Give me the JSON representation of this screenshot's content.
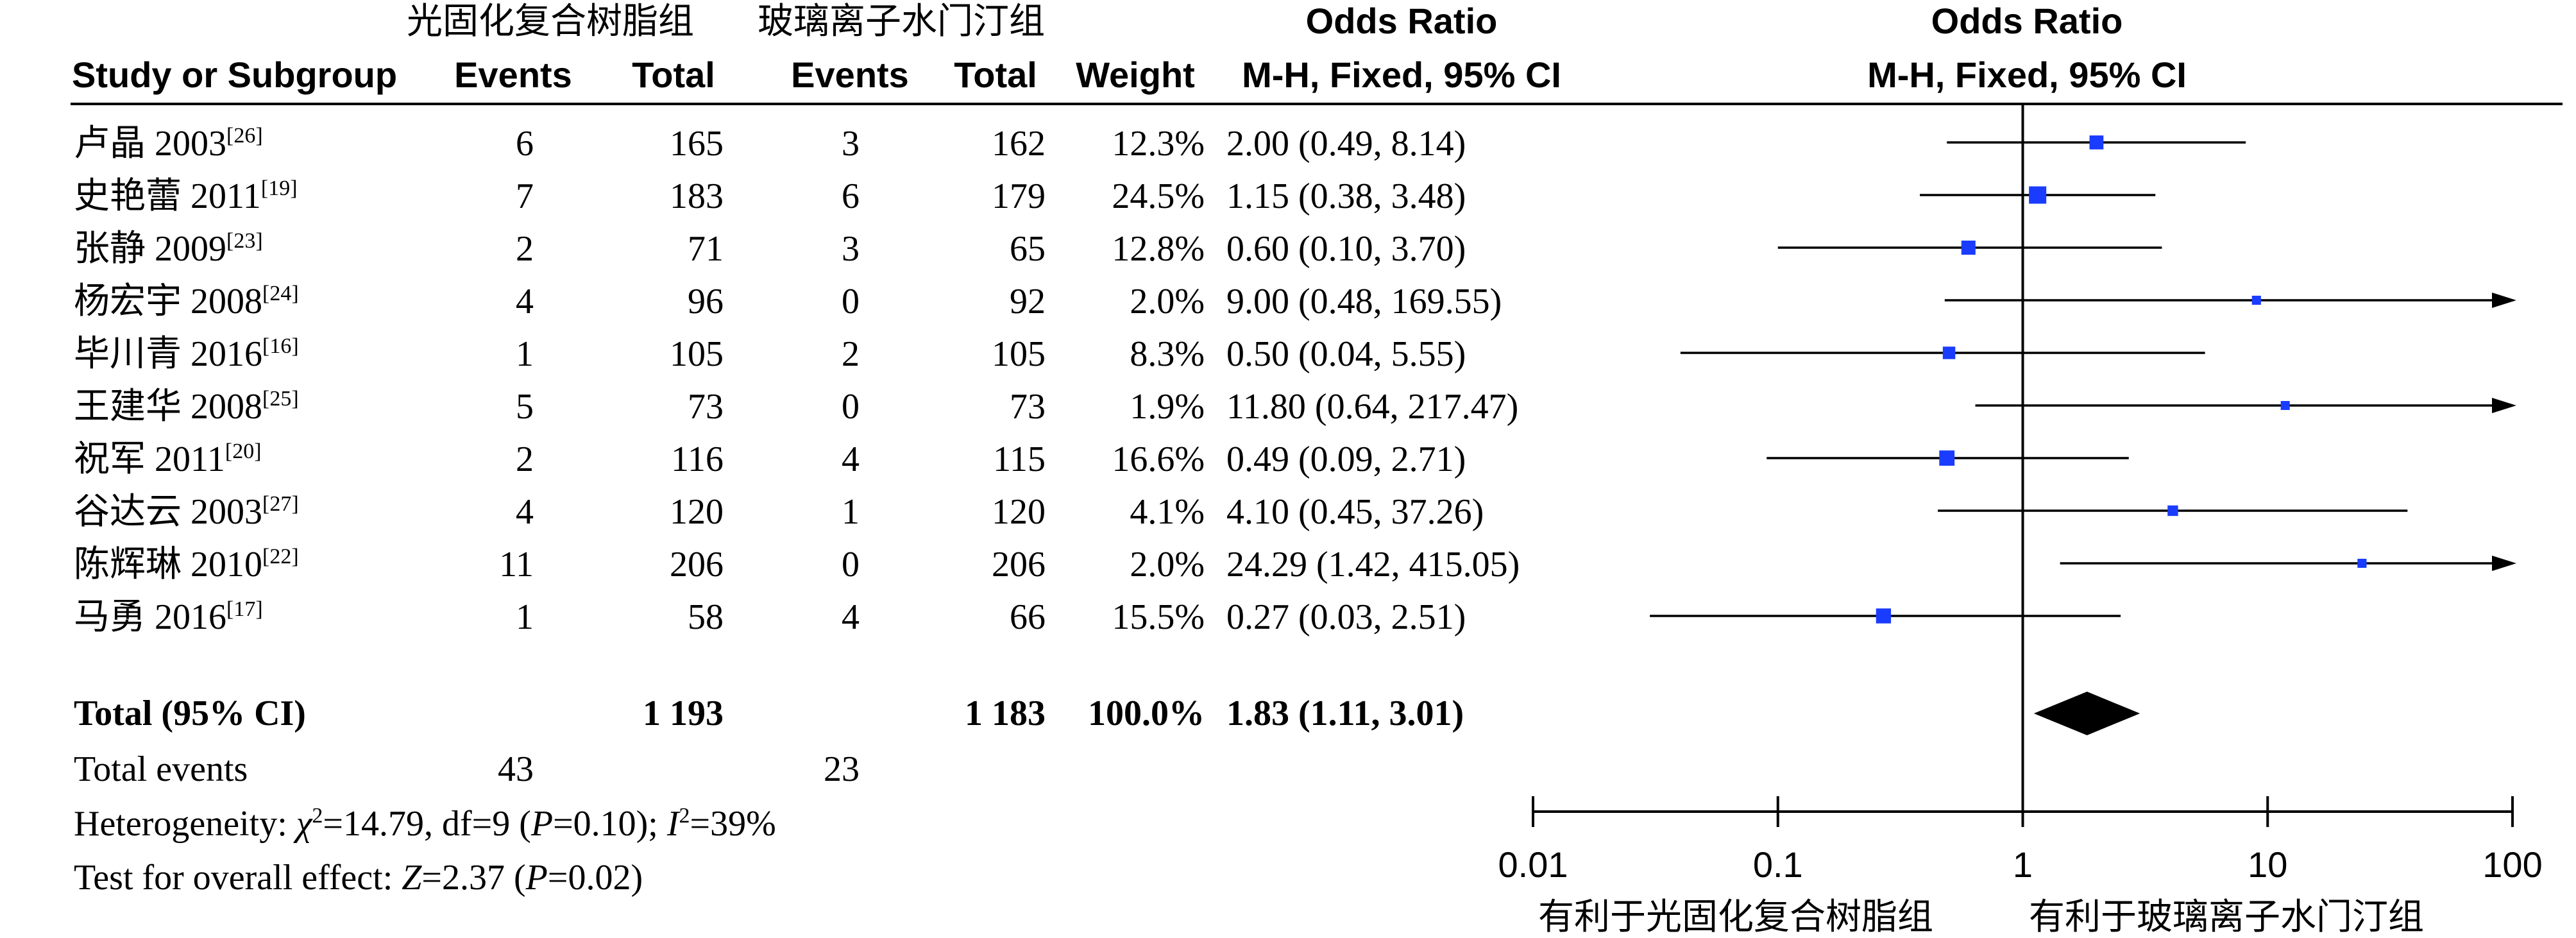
{
  "header": {
    "group1": "光固化复合树脂组",
    "group2": "玻璃离子水门汀组",
    "or_title": "Odds Ratio",
    "or_method": "M-H, Fixed, 95% CI",
    "plot_title": "Odds Ratio",
    "plot_method": "M-H, Fixed, 95% CI",
    "col_study": "Study or Subgroup",
    "col_events1": "Events",
    "col_total1": "Total",
    "col_events2": "Events",
    "col_total2": "Total",
    "col_weight": "Weight"
  },
  "total_row": {
    "label": "Total (95% CI)",
    "total1": "1 193",
    "total2": "1 183",
    "weight": "100.0%",
    "ci_text": "1.83 (1.11, 3.01)"
  },
  "total_events": {
    "label": "Total events",
    "events1": "43",
    "events2": "23"
  },
  "heterogeneity": {
    "prefix": "Heterogeneity: ",
    "chi": "χ",
    "chi_sup": "2",
    "chi_rest": "=14.79, df=9 (",
    "p": "P",
    "p_rest": "=0.10); ",
    "i": "I",
    "i_sup": "2",
    "i_rest": "=39%"
  },
  "overall_effect": {
    "prefix": "Test for overall effect: ",
    "z": "Z",
    "z_rest": "=2.37 (",
    "p": "P",
    "p_rest": "=0.02)"
  },
  "axis": {
    "tick_labels": [
      "0.01",
      "0.1",
      "1",
      "10",
      "100"
    ],
    "favours_left": "有利于光固化复合树脂组",
    "favours_right": "有利于玻璃离子水门汀组"
  },
  "colors": {
    "marker": "#1a3cff",
    "line": "#000000"
  },
  "chart_data": {
    "type": "forest",
    "title": "Odds Ratio",
    "subtitle": "M-H, Fixed, 95% CI",
    "x_scale": "log",
    "xlim": [
      0.01,
      100
    ],
    "grid": false,
    "studies": [
      {
        "label": "卢晶 2003",
        "ref": "[26]",
        "events1": 6,
        "total1": 165,
        "events2": 3,
        "total2": 162,
        "weight": "12.3%",
        "weight_value": 12.3,
        "or": 2.0,
        "lower": 0.49,
        "upper": 8.14,
        "ci_text": "2.00 (0.49, 8.14)"
      },
      {
        "label": "史艳蕾 2011",
        "ref": "[19]",
        "events1": 7,
        "total1": 183,
        "events2": 6,
        "total2": 179,
        "weight": "24.5%",
        "weight_value": 24.5,
        "or": 1.15,
        "lower": 0.38,
        "upper": 3.48,
        "ci_text": "1.15 (0.38, 3.48)"
      },
      {
        "label": "张静 2009",
        "ref": "[23]",
        "events1": 2,
        "total1": 71,
        "events2": 3,
        "total2": 65,
        "weight": "12.8%",
        "weight_value": 12.8,
        "or": 0.6,
        "lower": 0.1,
        "upper": 3.7,
        "ci_text": "0.60 (0.10, 3.70)"
      },
      {
        "label": "杨宏宇 2008",
        "ref": "[24]",
        "events1": 4,
        "total1": 96,
        "events2": 0,
        "total2": 92,
        "weight": "2.0%",
        "weight_value": 2.0,
        "or": 9.0,
        "lower": 0.48,
        "upper": 169.55,
        "ci_text": "9.00 (0.48, 169.55)"
      },
      {
        "label": "毕川青 2016",
        "ref": "[16]",
        "events1": 1,
        "total1": 105,
        "events2": 2,
        "total2": 105,
        "weight": "8.3%",
        "weight_value": 8.3,
        "or": 0.5,
        "lower": 0.04,
        "upper": 5.55,
        "ci_text": "0.50 (0.04, 5.55)"
      },
      {
        "label": "王建华 2008",
        "ref": "[25]",
        "events1": 5,
        "total1": 73,
        "events2": 0,
        "total2": 73,
        "weight": "1.9%",
        "weight_value": 1.9,
        "or": 11.8,
        "lower": 0.64,
        "upper": 217.47,
        "ci_text": "11.80 (0.64, 217.47)"
      },
      {
        "label": "祝军 2011",
        "ref": "[20]",
        "events1": 2,
        "total1": 116,
        "events2": 4,
        "total2": 115,
        "weight": "16.6%",
        "weight_value": 16.6,
        "or": 0.49,
        "lower": 0.09,
        "upper": 2.71,
        "ci_text": "0.49 (0.09, 2.71)"
      },
      {
        "label": "谷达云 2003",
        "ref": "[27]",
        "events1": 4,
        "total1": 120,
        "events2": 1,
        "total2": 120,
        "weight": "4.1%",
        "weight_value": 4.1,
        "or": 4.1,
        "lower": 0.45,
        "upper": 37.26,
        "ci_text": "4.10 (0.45, 37.26)"
      },
      {
        "label": "陈辉琳 2010",
        "ref": "[22]",
        "events1": 11,
        "total1": 206,
        "events2": 0,
        "total2": 206,
        "weight": "2.0%",
        "weight_value": 2.0,
        "or": 24.29,
        "lower": 1.42,
        "upper": 415.05,
        "ci_text": "24.29 (1.42, 415.05)"
      },
      {
        "label": "马勇 2016",
        "ref": "[17]",
        "events1": 1,
        "total1": 58,
        "events2": 4,
        "total2": 66,
        "weight": "15.5%",
        "weight_value": 15.5,
        "or": 0.27,
        "lower": 0.03,
        "upper": 2.51,
        "ci_text": "0.27 (0.03, 2.51)"
      }
    ],
    "pooled": {
      "or": 1.83,
      "lower": 1.11,
      "upper": 3.01
    },
    "ticks": [
      0.01,
      0.1,
      1,
      10,
      100
    ]
  }
}
